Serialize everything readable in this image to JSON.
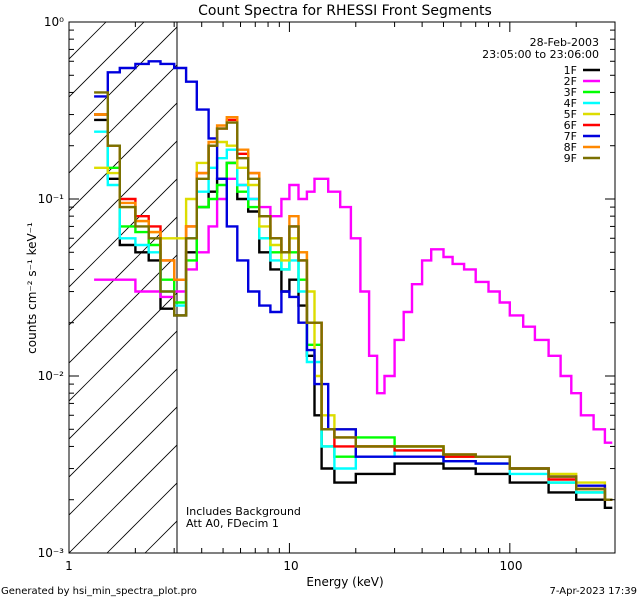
{
  "chart_data": {
    "type": "line",
    "title": "Count Spectra for RHESSI Front Segments",
    "xlabel": "Energy (keV)",
    "ylabel": "counts cm⁻² s⁻¹ keV⁻¹",
    "xscale": "log",
    "yscale": "log",
    "xlim": [
      1,
      300
    ],
    "ylim": [
      0.001,
      1
    ],
    "x_tick_labels": [
      "1",
      "10",
      "100"
    ],
    "y_tick_labels": [
      "10⁰",
      "10⁻¹",
      "10⁻²",
      "10⁻³"
    ],
    "date": "28-Feb-2003",
    "time_range": "23:05:00 to 23:06:00",
    "annotations": [
      "Includes Background",
      "Att A0, FDecim 1"
    ],
    "shaded_region": {
      "x_from": 1,
      "x_to": 3,
      "pattern": "hatched"
    },
    "series": [
      {
        "name": "1F",
        "color": "#000000",
        "points": [
          [
            1.3,
            0.28
          ],
          [
            1.5,
            0.13
          ],
          [
            1.7,
            0.055
          ],
          [
            2.0,
            0.05
          ],
          [
            2.3,
            0.045
          ],
          [
            2.6,
            0.024
          ],
          [
            3.0,
            0.022
          ],
          [
            3.4,
            0.05
          ],
          [
            3.8,
            0.09
          ],
          [
            4.3,
            0.11
          ],
          [
            4.7,
            0.13
          ],
          [
            5.2,
            0.16
          ],
          [
            5.8,
            0.1
          ],
          [
            6.5,
            0.085
          ],
          [
            7.3,
            0.05
          ],
          [
            8.2,
            0.04
          ],
          [
            9.2,
            0.03
          ],
          [
            10,
            0.035
          ],
          [
            11,
            0.025
          ],
          [
            12,
            0.013
          ],
          [
            13,
            0.006
          ],
          [
            14,
            0.003
          ],
          [
            16,
            0.0025
          ],
          [
            20,
            0.0028
          ],
          [
            30,
            0.0032
          ],
          [
            50,
            0.003
          ],
          [
            70,
            0.0028
          ],
          [
            100,
            0.0025
          ],
          [
            150,
            0.0022
          ],
          [
            200,
            0.002
          ],
          [
            270,
            0.0018
          ]
        ]
      },
      {
        "name": "2F",
        "color": "#ff00ff",
        "points": [
          [
            1.3,
            0.035
          ],
          [
            1.5,
            0.035
          ],
          [
            1.7,
            0.035
          ],
          [
            2.0,
            0.03
          ],
          [
            2.3,
            0.03
          ],
          [
            2.6,
            0.028
          ],
          [
            3.0,
            0.03
          ],
          [
            3.4,
            0.04
          ],
          [
            3.8,
            0.05
          ],
          [
            4.3,
            0.07
          ],
          [
            4.7,
            0.1
          ],
          [
            5.2,
            0.13
          ],
          [
            5.8,
            0.12
          ],
          [
            6.5,
            0.1
          ],
          [
            7.3,
            0.09
          ],
          [
            8.2,
            0.08
          ],
          [
            9.2,
            0.1
          ],
          [
            10,
            0.12
          ],
          [
            11,
            0.1
          ],
          [
            12,
            0.11
          ],
          [
            13,
            0.13
          ],
          [
            15,
            0.11
          ],
          [
            17,
            0.09
          ],
          [
            19,
            0.06
          ],
          [
            21,
            0.03
          ],
          [
            23,
            0.013
          ],
          [
            25,
            0.008
          ],
          [
            27,
            0.01
          ],
          [
            30,
            0.016
          ],
          [
            33,
            0.023
          ],
          [
            36,
            0.033
          ],
          [
            40,
            0.045
          ],
          [
            44,
            0.052
          ],
          [
            50,
            0.047
          ],
          [
            55,
            0.043
          ],
          [
            62,
            0.04
          ],
          [
            70,
            0.034
          ],
          [
            80,
            0.03
          ],
          [
            90,
            0.026
          ],
          [
            100,
            0.022
          ],
          [
            115,
            0.019
          ],
          [
            130,
            0.016
          ],
          [
            150,
            0.013
          ],
          [
            170,
            0.01
          ],
          [
            190,
            0.008
          ],
          [
            210,
            0.006
          ],
          [
            240,
            0.005
          ],
          [
            270,
            0.0042
          ]
        ]
      },
      {
        "name": "3F",
        "color": "#00ff00",
        "points": [
          [
            1.3,
            0.3
          ],
          [
            1.5,
            0.15
          ],
          [
            1.7,
            0.07
          ],
          [
            2.0,
            0.065
          ],
          [
            2.3,
            0.055
          ],
          [
            2.6,
            0.035
          ],
          [
            3.0,
            0.026
          ],
          [
            3.4,
            0.045
          ],
          [
            3.8,
            0.09
          ],
          [
            4.3,
            0.1
          ],
          [
            4.7,
            0.12
          ],
          [
            5.2,
            0.16
          ],
          [
            5.8,
            0.11
          ],
          [
            6.5,
            0.09
          ],
          [
            7.3,
            0.06
          ],
          [
            8.2,
            0.05
          ],
          [
            9.2,
            0.04
          ],
          [
            10,
            0.05
          ],
          [
            11,
            0.035
          ],
          [
            12,
            0.015
          ],
          [
            14,
            0.004
          ],
          [
            16,
            0.0035
          ],
          [
            20,
            0.0045
          ],
          [
            30,
            0.004
          ],
          [
            50,
            0.0035
          ],
          [
            70,
            0.0035
          ],
          [
            100,
            0.003
          ],
          [
            150,
            0.0025
          ],
          [
            200,
            0.0022
          ],
          [
            270,
            0.002
          ]
        ]
      },
      {
        "name": "4F",
        "color": "#00ffff",
        "points": [
          [
            1.3,
            0.24
          ],
          [
            1.5,
            0.12
          ],
          [
            1.7,
            0.06
          ],
          [
            2.0,
            0.055
          ],
          [
            2.3,
            0.05
          ],
          [
            2.6,
            0.03
          ],
          [
            3.0,
            0.025
          ],
          [
            3.4,
            0.06
          ],
          [
            3.8,
            0.11
          ],
          [
            4.3,
            0.15
          ],
          [
            4.7,
            0.17
          ],
          [
            5.2,
            0.19
          ],
          [
            5.8,
            0.12
          ],
          [
            6.5,
            0.1
          ],
          [
            7.3,
            0.06
          ],
          [
            8.2,
            0.045
          ],
          [
            9.2,
            0.04
          ],
          [
            10,
            0.045
          ],
          [
            11,
            0.03
          ],
          [
            12,
            0.012
          ],
          [
            14,
            0.004
          ],
          [
            16,
            0.003
          ],
          [
            20,
            0.0035
          ],
          [
            30,
            0.0038
          ],
          [
            50,
            0.0033
          ],
          [
            70,
            0.0032
          ],
          [
            100,
            0.0028
          ],
          [
            150,
            0.0025
          ],
          [
            200,
            0.0022
          ],
          [
            270,
            0.002
          ]
        ]
      },
      {
        "name": "5F",
        "color": "#dddd00",
        "points": [
          [
            1.3,
            0.15
          ],
          [
            1.5,
            0.14
          ],
          [
            1.7,
            0.09
          ],
          [
            2.0,
            0.075
          ],
          [
            2.3,
            0.065
          ],
          [
            2.6,
            0.06
          ],
          [
            3.0,
            0.06
          ],
          [
            3.4,
            0.1
          ],
          [
            3.8,
            0.16
          ],
          [
            4.3,
            0.2
          ],
          [
            4.7,
            0.21
          ],
          [
            5.2,
            0.2
          ],
          [
            5.8,
            0.15
          ],
          [
            6.5,
            0.12
          ],
          [
            7.3,
            0.07
          ],
          [
            8.2,
            0.055
          ],
          [
            9.2,
            0.045
          ],
          [
            10,
            0.06
          ],
          [
            11,
            0.05
          ],
          [
            12,
            0.03
          ],
          [
            13,
            0.01
          ],
          [
            14,
            0.006
          ],
          [
            16,
            0.005
          ],
          [
            20,
            0.004
          ],
          [
            30,
            0.004
          ],
          [
            50,
            0.0035
          ],
          [
            70,
            0.0035
          ],
          [
            100,
            0.003
          ],
          [
            150,
            0.0028
          ],
          [
            200,
            0.0025
          ],
          [
            270,
            0.002
          ]
        ]
      },
      {
        "name": "6F",
        "color": "#ff0000",
        "points": [
          [
            1.3,
            0.3
          ],
          [
            1.5,
            0.2
          ],
          [
            1.7,
            0.1
          ],
          [
            2.0,
            0.08
          ],
          [
            2.3,
            0.07
          ],
          [
            2.6,
            0.045
          ],
          [
            3.0,
            0.035
          ],
          [
            3.4,
            0.07
          ],
          [
            3.8,
            0.14
          ],
          [
            4.3,
            0.2
          ],
          [
            4.7,
            0.25
          ],
          [
            5.2,
            0.28
          ],
          [
            5.8,
            0.18
          ],
          [
            6.5,
            0.14
          ],
          [
            7.3,
            0.08
          ],
          [
            8.2,
            0.06
          ],
          [
            9.2,
            0.05
          ],
          [
            10,
            0.07
          ],
          [
            11,
            0.045
          ],
          [
            12,
            0.02
          ],
          [
            14,
            0.005
          ],
          [
            16,
            0.004
          ],
          [
            20,
            0.004
          ],
          [
            30,
            0.0038
          ],
          [
            50,
            0.0035
          ],
          [
            70,
            0.0035
          ],
          [
            100,
            0.003
          ],
          [
            150,
            0.0026
          ],
          [
            200,
            0.0023
          ],
          [
            270,
            0.002
          ]
        ]
      },
      {
        "name": "7F",
        "color": "#0000dd",
        "points": [
          [
            1.3,
            0.38
          ],
          [
            1.5,
            0.52
          ],
          [
            1.7,
            0.55
          ],
          [
            2.0,
            0.58
          ],
          [
            2.3,
            0.6
          ],
          [
            2.6,
            0.58
          ],
          [
            3.0,
            0.55
          ],
          [
            3.4,
            0.46
          ],
          [
            3.8,
            0.32
          ],
          [
            4.3,
            0.22
          ],
          [
            4.7,
            0.13
          ],
          [
            5.2,
            0.07
          ],
          [
            5.8,
            0.045
          ],
          [
            6.5,
            0.03
          ],
          [
            7.3,
            0.025
          ],
          [
            8.2,
            0.023
          ],
          [
            9.2,
            0.03
          ],
          [
            10,
            0.028
          ],
          [
            11,
            0.02
          ],
          [
            12,
            0.014
          ],
          [
            13,
            0.009
          ],
          [
            15,
            0.005
          ],
          [
            20,
            0.0035
          ],
          [
            30,
            0.0035
          ],
          [
            50,
            0.0033
          ],
          [
            70,
            0.0032
          ],
          [
            100,
            0.003
          ],
          [
            150,
            0.0027
          ],
          [
            200,
            0.0024
          ],
          [
            270,
            0.002
          ]
        ]
      },
      {
        "name": "8F",
        "color": "#ff8800",
        "points": [
          [
            1.3,
            0.3
          ],
          [
            1.5,
            0.2
          ],
          [
            1.7,
            0.095
          ],
          [
            2.0,
            0.075
          ],
          [
            2.3,
            0.065
          ],
          [
            2.6,
            0.045
          ],
          [
            3.0,
            0.035
          ],
          [
            3.4,
            0.07
          ],
          [
            3.8,
            0.14
          ],
          [
            4.3,
            0.21
          ],
          [
            4.7,
            0.26
          ],
          [
            5.2,
            0.29
          ],
          [
            5.8,
            0.19
          ],
          [
            6.5,
            0.14
          ],
          [
            7.3,
            0.08
          ],
          [
            8.2,
            0.06
          ],
          [
            9.2,
            0.05
          ],
          [
            10,
            0.08
          ],
          [
            11,
            0.05
          ],
          [
            12,
            0.02
          ],
          [
            14,
            0.005
          ],
          [
            16,
            0.0045
          ],
          [
            20,
            0.004
          ],
          [
            30,
            0.004
          ],
          [
            50,
            0.0036
          ],
          [
            70,
            0.0035
          ],
          [
            100,
            0.003
          ],
          [
            150,
            0.0027
          ],
          [
            200,
            0.0023
          ],
          [
            270,
            0.002
          ]
        ]
      },
      {
        "name": "9F",
        "color": "#7a7000",
        "points": [
          [
            1.3,
            0.4
          ],
          [
            1.5,
            0.2
          ],
          [
            1.7,
            0.09
          ],
          [
            2.0,
            0.07
          ],
          [
            2.3,
            0.06
          ],
          [
            2.6,
            0.03
          ],
          [
            3.0,
            0.022
          ],
          [
            3.4,
            0.06
          ],
          [
            3.8,
            0.13
          ],
          [
            4.3,
            0.2
          ],
          [
            4.7,
            0.25
          ],
          [
            5.2,
            0.27
          ],
          [
            5.8,
            0.17
          ],
          [
            6.5,
            0.13
          ],
          [
            7.3,
            0.08
          ],
          [
            8.2,
            0.06
          ],
          [
            9.2,
            0.05
          ],
          [
            10,
            0.07
          ],
          [
            11,
            0.045
          ],
          [
            12,
            0.02
          ],
          [
            14,
            0.005
          ],
          [
            16,
            0.0045
          ],
          [
            20,
            0.004
          ],
          [
            30,
            0.004
          ],
          [
            50,
            0.0036
          ],
          [
            70,
            0.0035
          ],
          [
            100,
            0.003
          ],
          [
            150,
            0.0027
          ],
          [
            200,
            0.0023
          ],
          [
            270,
            0.002
          ]
        ]
      }
    ]
  },
  "footer": {
    "generated_by": "Generated by hsi_min_spectra_plot.pro",
    "timestamp": "7-Apr-2023 17:39"
  }
}
